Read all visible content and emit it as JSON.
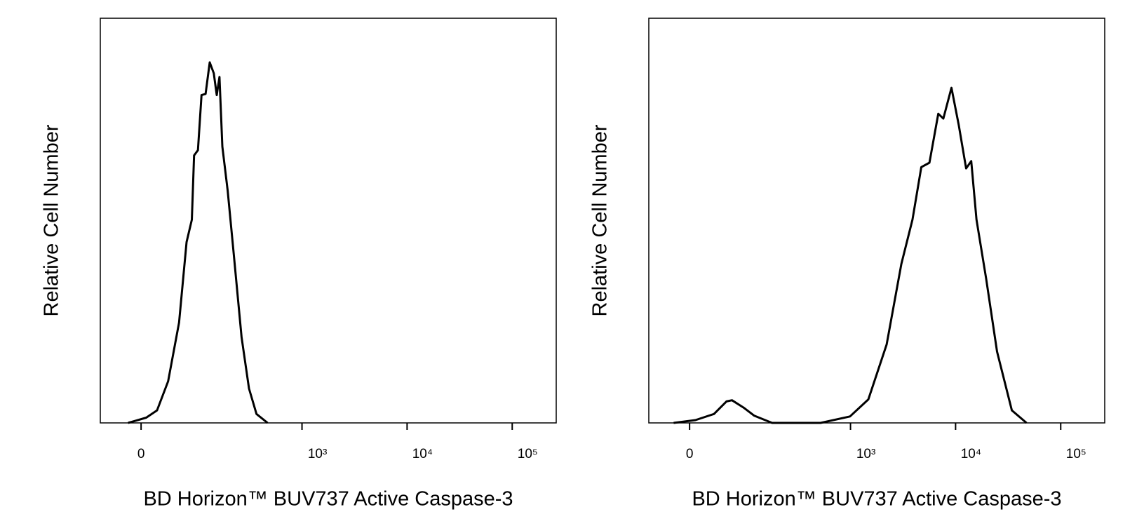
{
  "chart_data": [
    {
      "type": "line",
      "xscale": "asinh",
      "color": "#000000",
      "xlabel": "BD Horizon™ BUV737 Active Caspase-3",
      "ylabel": "Relative Cell Number",
      "xlim": [
        -60,
        262144
      ],
      "ylim": [
        0,
        100
      ],
      "xticks": [
        0,
        {
          "value": 1000,
          "label": "10³"
        },
        {
          "value": 10000,
          "label": "10⁴"
        },
        {
          "value": 100000,
          "label": "10⁵"
        }
      ],
      "x": [
        -17,
        -7.6,
        6.7,
        21,
        37,
        55,
        69,
        80,
        85,
        94,
        103,
        114,
        126,
        139,
        149,
        159,
        170,
        192,
        222,
        263,
        311,
        367,
        469
      ],
      "values": [
        0,
        0.5,
        1.3,
        3.1,
        10.3,
        24.8,
        44.7,
        50.2,
        66.1,
        67.4,
        81,
        81.3,
        89.1,
        86.4,
        81,
        85.5,
        68.3,
        57.4,
        41.1,
        21.2,
        8.5,
        2.2,
        0
      ]
    },
    {
      "type": "line",
      "xscale": "asinh",
      "color": "#000000",
      "xlabel": "BD Horizon™ BUV737 Active Caspase-3",
      "ylabel": "Relative Cell Number",
      "xlim": [
        -60,
        262144
      ],
      "ylim": [
        0,
        100
      ],
      "xticks": [
        0,
        {
          "value": 1000,
          "label": "10³"
        },
        {
          "value": 10000,
          "label": "10⁴"
        },
        {
          "value": 100000,
          "label": "10⁵"
        }
      ],
      "x": [
        -21,
        7.6,
        33,
        53,
        63,
        87,
        114,
        175,
        518,
        989,
        1480,
        2210,
        3050,
        3890,
        4720,
        5640,
        6840,
        7650,
        9140,
        10700,
        12600,
        14100,
        15800,
        19500,
        24800,
        34300,
        47300
      ],
      "values": [
        0,
        0.7,
        2.2,
        5.3,
        5.6,
        3.8,
        1.8,
        0,
        0,
        1.6,
        5.8,
        19.4,
        39.3,
        50.2,
        63.2,
        64.3,
        76.4,
        75.2,
        82.8,
        73.7,
        62.9,
        64.7,
        50.2,
        35.7,
        17.6,
        3.1,
        0
      ]
    }
  ]
}
